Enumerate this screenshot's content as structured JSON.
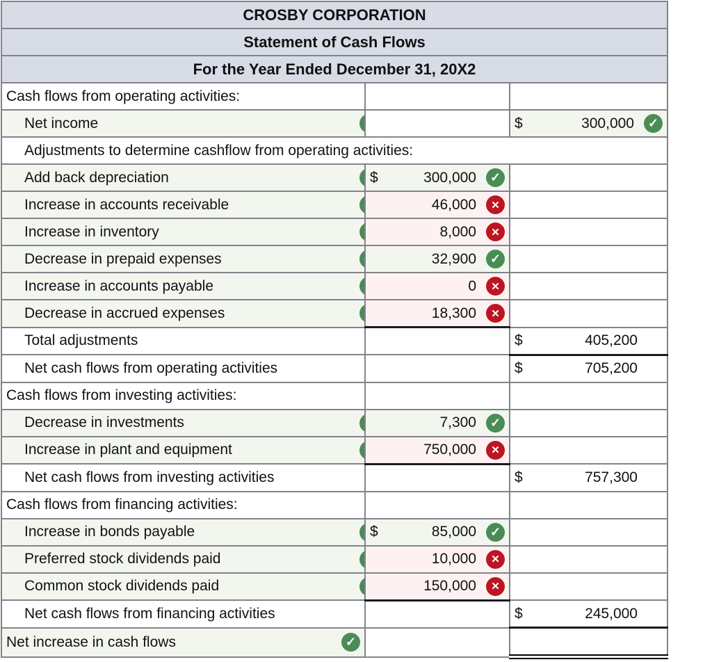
{
  "title_lines": [
    "CROSBY CORPORATION",
    "Statement of Cash Flows",
    "For the Year Ended December 31, 20X2"
  ],
  "icons": {
    "check_glyph": "✓",
    "x_glyph": "✕"
  },
  "colors": {
    "correct": "#4a8c55",
    "incorrect": "#bb1622",
    "header_bg": "#d7dce6",
    "tint_correct": "#f2f6ef",
    "tint_incorrect": "#fdf2f1"
  },
  "rows": [
    {
      "label": "Cash flows from operating activities:",
      "indent": 0
    },
    {
      "label": "Net income",
      "indent": 1,
      "label_check": true,
      "right": {
        "dollar": "$",
        "value": "300,000",
        "status": "correct"
      }
    },
    {
      "label": "Adjustments to determine cashflow from operating activities:",
      "indent": 1,
      "span": true
    },
    {
      "label": "Add back depreciation",
      "indent": 1,
      "label_check": true,
      "mid": {
        "dollar": "$",
        "value": "300,000",
        "status": "correct"
      }
    },
    {
      "label": "Increase in accounts receivable",
      "indent": 1,
      "label_check": true,
      "mid": {
        "value": "46,000",
        "status": "incorrect"
      }
    },
    {
      "label": "Increase in inventory",
      "indent": 1,
      "label_check": true,
      "mid": {
        "value": "8,000",
        "status": "incorrect"
      }
    },
    {
      "label": "Decrease in prepaid expenses",
      "indent": 1,
      "label_check": true,
      "mid": {
        "value": "32,900",
        "status": "correct"
      }
    },
    {
      "label": "Increase in accounts payable",
      "indent": 1,
      "label_check": true,
      "mid": {
        "value": "0",
        "status": "incorrect"
      }
    },
    {
      "label": "Decrease in accrued expenses",
      "indent": 1,
      "label_check": true,
      "mid": {
        "value": "18,300",
        "status": "incorrect",
        "sumline": true
      }
    },
    {
      "label": "Total adjustments",
      "indent": 1,
      "right": {
        "dollar": "$",
        "value": "405,200",
        "sumline": true
      }
    },
    {
      "label": "Net cash flows from operating activities",
      "indent": 1,
      "right": {
        "dollar": "$",
        "value": "705,200"
      }
    },
    {
      "label": "Cash flows from investing activities:",
      "indent": 0
    },
    {
      "label": "Decrease in investments",
      "indent": 1,
      "label_check": true,
      "mid": {
        "value": "7,300",
        "status": "correct"
      }
    },
    {
      "label": "Increase in plant and equipment",
      "indent": 1,
      "label_check": true,
      "mid": {
        "value": "750,000",
        "status": "incorrect",
        "sumline": true
      }
    },
    {
      "label": "Net cash flows from investing activities",
      "indent": 1,
      "right": {
        "dollar": "$",
        "value": "757,300"
      }
    },
    {
      "label": "Cash flows from financing activities:",
      "indent": 0
    },
    {
      "label": "Increase in bonds payable",
      "indent": 1,
      "label_check": true,
      "mid": {
        "dollar": "$",
        "value": "85,000",
        "status": "correct"
      }
    },
    {
      "label": "Preferred stock dividends paid",
      "indent": 1,
      "label_check": true,
      "mid": {
        "value": "10,000",
        "status": "incorrect"
      }
    },
    {
      "label": "Common stock dividends paid",
      "indent": 1,
      "label_check": true,
      "mid": {
        "value": "150,000",
        "status": "incorrect",
        "sumline": true
      }
    },
    {
      "label": "Net cash flows from financing activities",
      "indent": 1,
      "right": {
        "dollar": "$",
        "value": "245,000"
      }
    },
    {
      "label": "Net increase in cash flows",
      "indent": 0,
      "label_check": true,
      "final": true
    }
  ]
}
